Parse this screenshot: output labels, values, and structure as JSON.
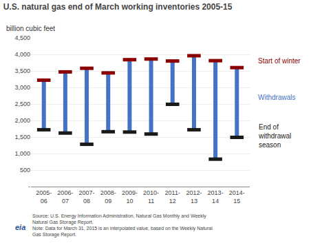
{
  "chart_data": {
    "type": "bar",
    "title": "U.S. natural gas end of March working inventories 2005-15",
    "ylabel": "billion cubic feet",
    "categories": [
      "2005-\n06",
      "2006-\n07",
      "2007-\n08",
      "2008-\n09",
      "2009-\n10",
      "2010-\n11",
      "2011-\n12",
      "2012-\n13",
      "2013-\n14",
      "2014-\n15"
    ],
    "color": "#4472C4",
    "series": [
      {
        "name": "Start of winter",
        "color": "#8B0000",
        "values": [
          3220,
          3470,
          3580,
          3440,
          3840,
          3860,
          3800,
          3960,
          3810,
          3600
        ]
      },
      {
        "name": "End of\nwithdrawal\nseason",
        "color": "#1a1a1a",
        "values": [
          1720,
          1620,
          1280,
          1660,
          1650,
          1590,
          2490,
          1720,
          830,
          1490
        ]
      }
    ],
    "annotations": [
      {
        "text": "Withdrawals"
      },
      {
        "text": "Source: U.S. Energy Information Administration, Natural Gas Monthly and Weekly\nNatural Gas Storage Report.\nNote: Data for March 31, 2015 is an interpolated value, based on the Weekly Natural\nGas Storage Report."
      },
      {
        "text": "eia",
        "color": "#1F4E96"
      }
    ],
    "ylim": [
      0,
      4500
    ],
    "yticks": [
      {
        "value": 0,
        "label": "-"
      },
      500,
      {
        "value": 1000,
        "label": "1,000"
      },
      {
        "value": 1500,
        "label": "1,500"
      },
      {
        "value": 2000,
        "label": "2,000"
      },
      {
        "value": 2500,
        "label": "2,500"
      },
      {
        "value": 3000,
        "label": "3,000"
      },
      {
        "value": 3500,
        "label": "3,500"
      },
      {
        "value": 4000,
        "label": "4,000"
      },
      {
        "value": 4500,
        "label": "4,500"
      }
    ],
    "grid": true
  }
}
